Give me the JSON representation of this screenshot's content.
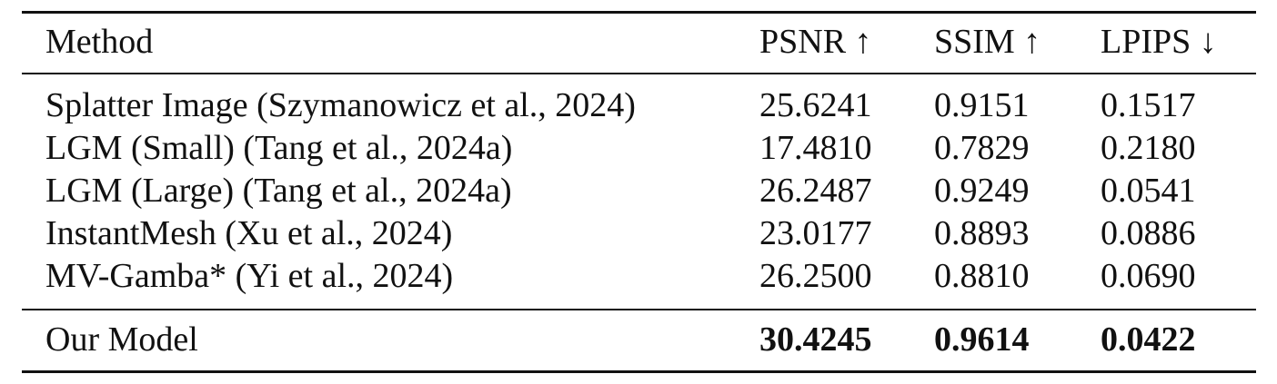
{
  "table": {
    "headers": {
      "method": "Method",
      "psnr": "PSNR ↑",
      "ssim": "SSIM ↑",
      "lpips": "LPIPS ↓"
    },
    "rows": [
      {
        "method": "Splatter Image (Szymanowicz et al., 2024)",
        "psnr": "25.6241",
        "ssim": "0.9151",
        "lpips": "0.1517"
      },
      {
        "method": "LGM (Small) (Tang et al., 2024a)",
        "psnr": "17.4810",
        "ssim": "0.7829",
        "lpips": "0.2180"
      },
      {
        "method": "LGM (Large) (Tang et al., 2024a)",
        "psnr": "26.2487",
        "ssim": "0.9249",
        "lpips": "0.0541"
      },
      {
        "method": "InstantMesh (Xu et al., 2024)",
        "psnr": "23.0177",
        "ssim": "0.8893",
        "lpips": "0.0886"
      },
      {
        "method": "MV-Gamba* (Yi et al., 2024)",
        "psnr": "26.2500",
        "ssim": "0.8810",
        "lpips": "0.0690"
      }
    ],
    "ours": {
      "method": "Our Model",
      "psnr": "30.4245",
      "ssim": "0.9614",
      "lpips": "0.0422"
    }
  }
}
